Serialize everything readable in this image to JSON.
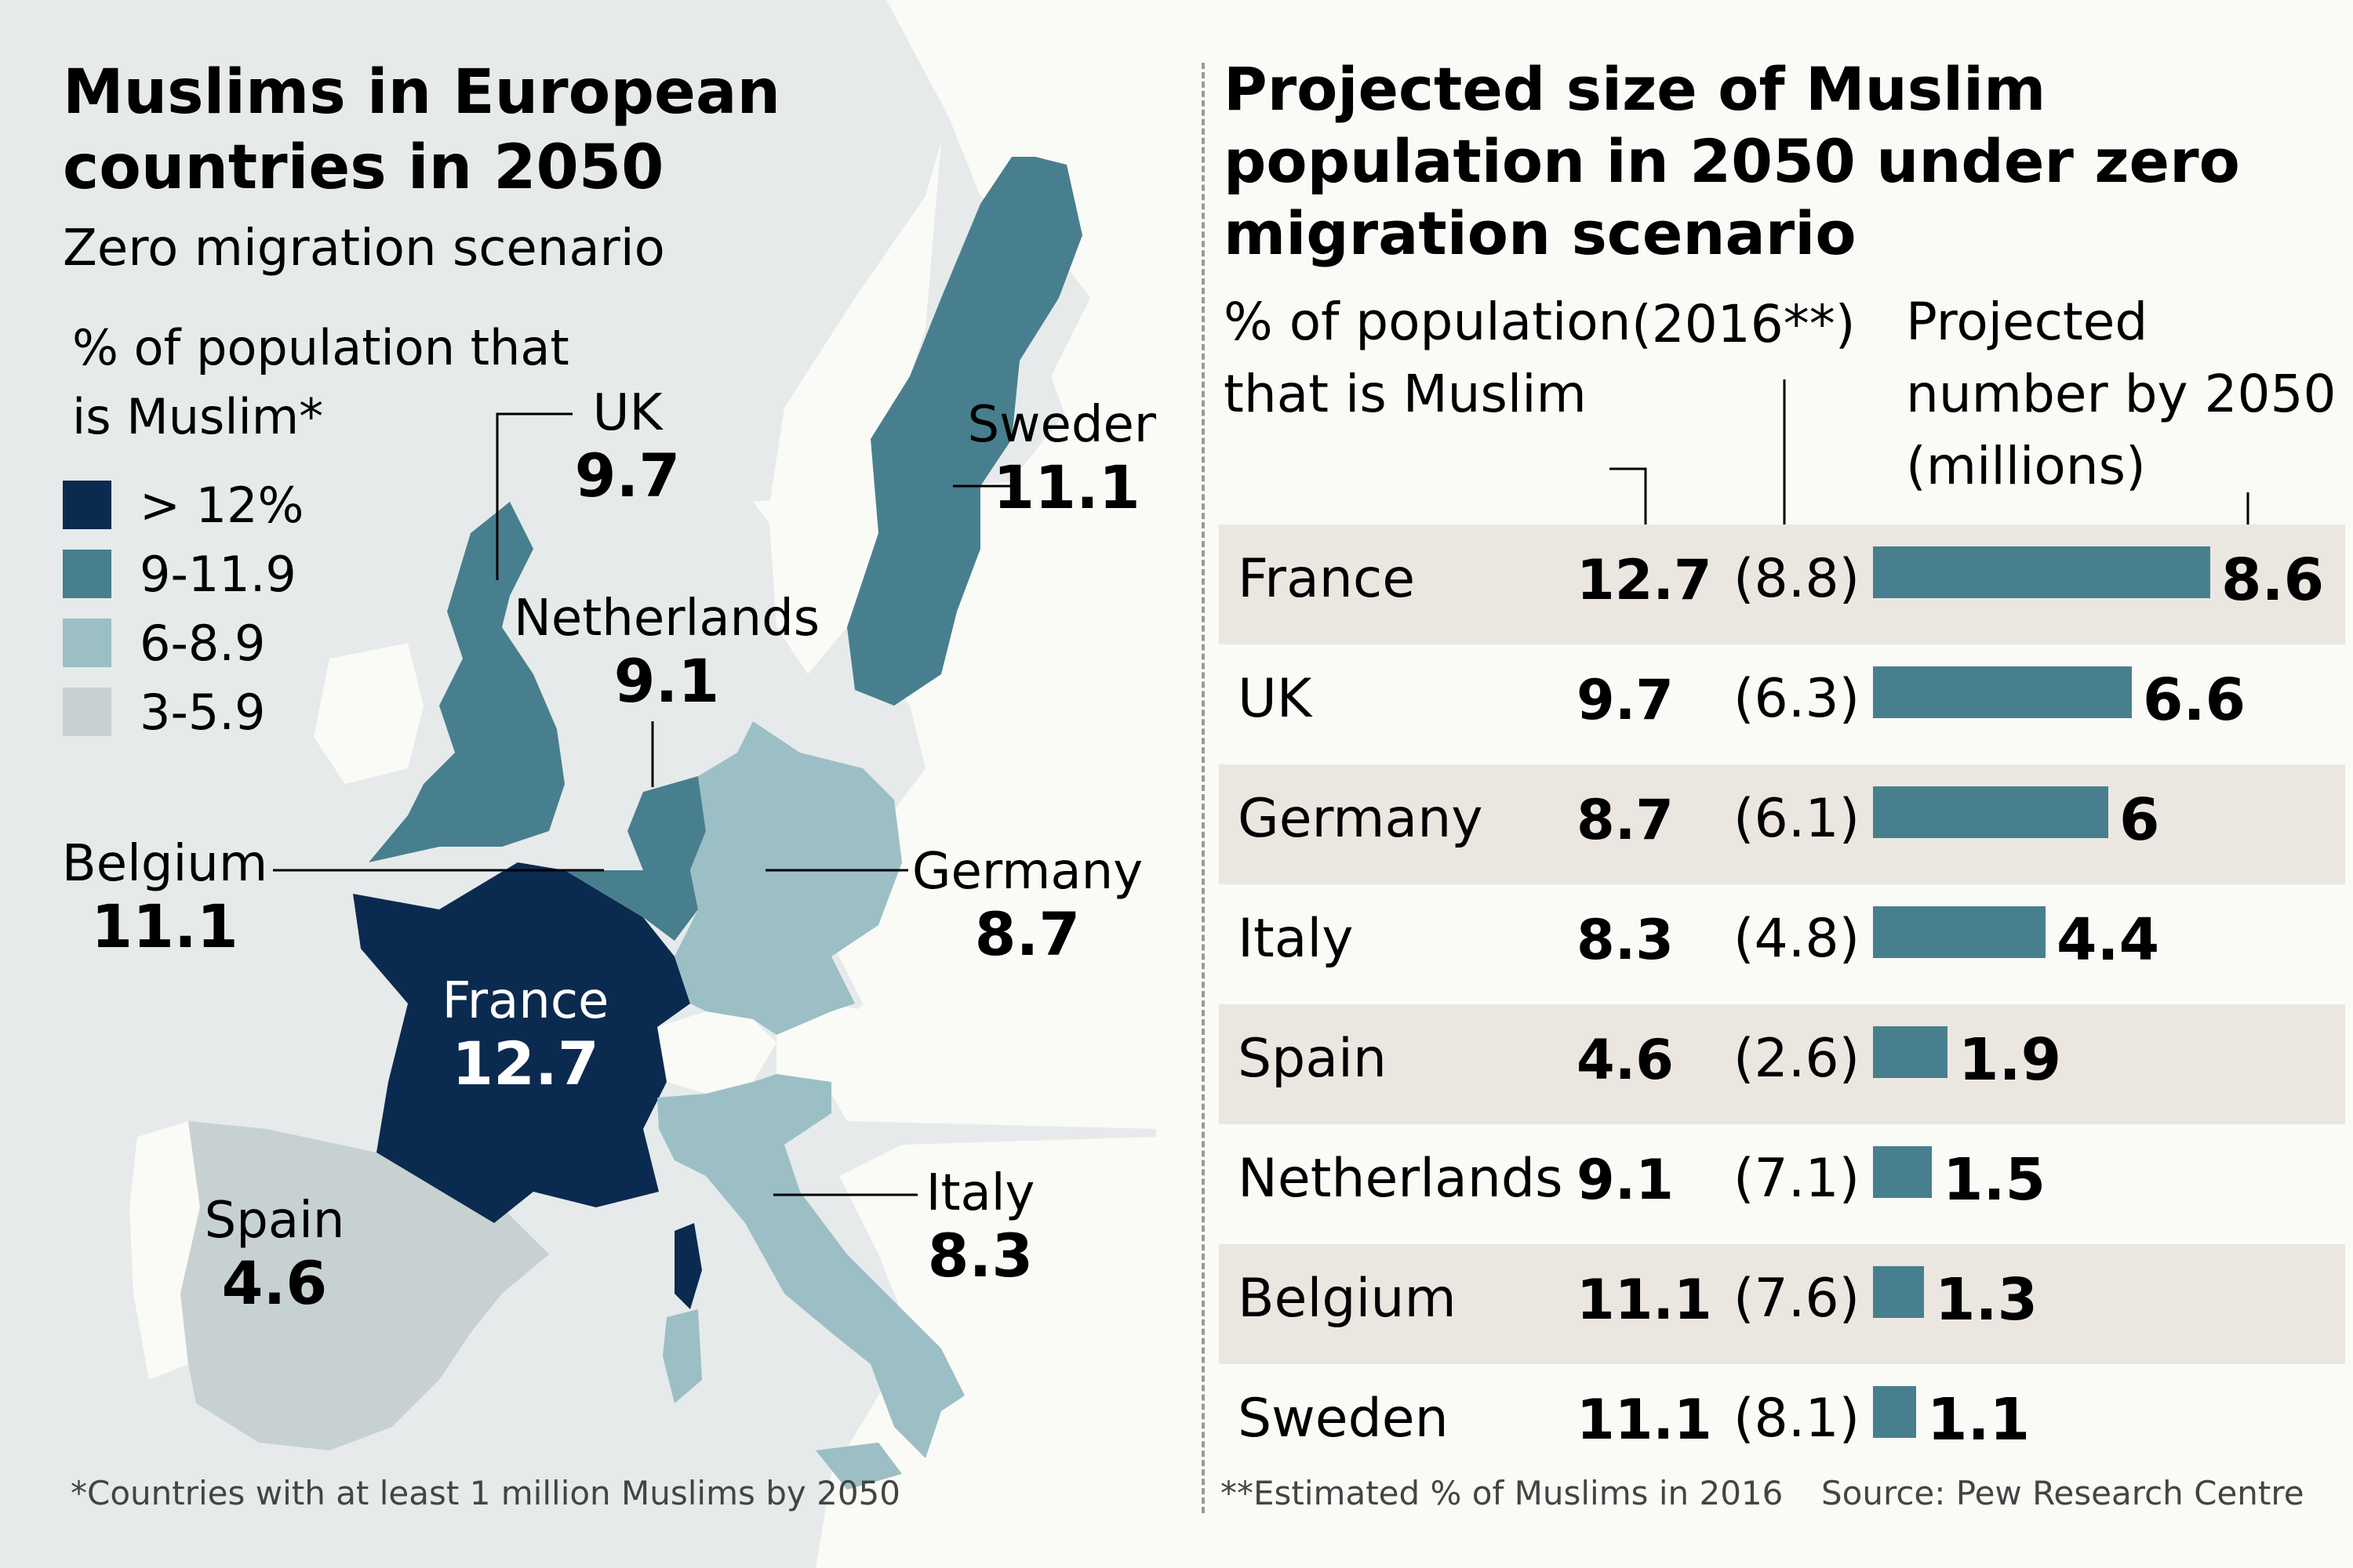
{
  "map": {
    "title": "Muslims in European countries in 2050",
    "subtitle": "Zero migration scenario",
    "legend_title": "% of population that is Muslim*",
    "legend": [
      {
        "label": "> 12%",
        "color": "#0b2a50"
      },
      {
        "label": "9-11.9",
        "color": "#487f8e"
      },
      {
        "label": "6-8.9",
        "color": "#9bbfc5"
      },
      {
        "label": "3-5.9",
        "color": "#c7d1d1"
      }
    ],
    "countries": {
      "uk": {
        "name": "UK",
        "value": "9.7"
      },
      "sweden": {
        "name": "Sweden",
        "value": "11.1"
      },
      "netherlands": {
        "name": "Netherlands",
        "value": "9.1"
      },
      "belgium": {
        "name": "Belgium",
        "value": "11.1"
      },
      "germany": {
        "name": "Germany",
        "value": "8.7"
      },
      "france": {
        "name": "France",
        "value": "12.7"
      },
      "italy": {
        "name": "Italy",
        "value": "8.3"
      },
      "spain": {
        "name": "Spain",
        "value": "4.6"
      }
    },
    "footnote": "*Countries with at least 1 million Muslims by 2050"
  },
  "table": {
    "title": "Projected size of Muslim population in 2050 under zero migration scenario",
    "col_pct": "% of population that is Muslim",
    "col_2016": "(2016**)",
    "col_proj": "Projected number by 2050 (millions)",
    "footnote": "**Estimated % of Muslims in 2016",
    "source": "Source: Pew Research Centre"
  },
  "chart_data": {
    "type": "bar",
    "title": "Projected size of Muslim population in 2050 under zero migration scenario",
    "categories": [
      "France",
      "UK",
      "Germany",
      "Italy",
      "Spain",
      "Netherlands",
      "Belgium",
      "Sweden"
    ],
    "pct_2050": [
      "12.7",
      "9.7",
      "8.7",
      "8.3",
      "4.6",
      "9.1",
      "11.1",
      "11.1"
    ],
    "pct_2016": [
      "(8.8)",
      "(6.3)",
      "(6.1)",
      "(4.8)",
      "(2.6)",
      "(7.1)",
      "(7.6)",
      "(8.1)"
    ],
    "values": [
      8.6,
      6.6,
      6,
      4.4,
      1.9,
      1.5,
      1.3,
      1.1
    ],
    "value_labels": [
      "8.6",
      "6.6",
      "6",
      "4.4",
      "1.9",
      "1.5",
      "1.3",
      "1.1"
    ],
    "bar_color": "#487f8e"
  }
}
